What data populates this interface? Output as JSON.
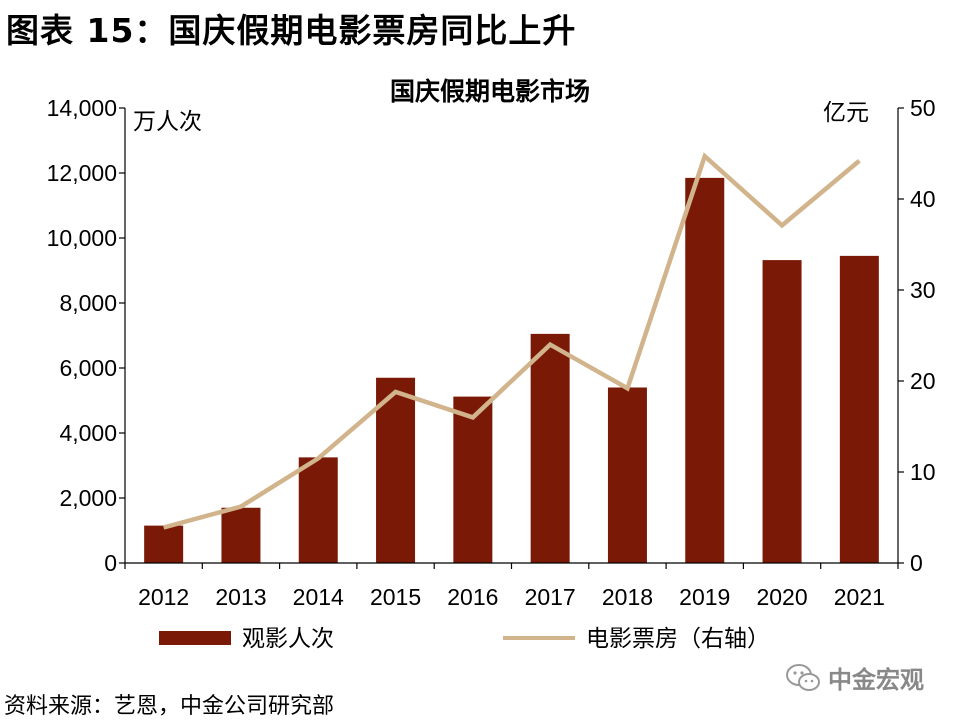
{
  "figure": {
    "label": "图表 15：国庆假期电影票房同比上升",
    "source": "资料来源：艺恩，中金公司研究部",
    "watermark": "中金宏观"
  },
  "chart_data": {
    "type": "bar",
    "title": "国庆假期电影市场",
    "categories": [
      "2012",
      "2013",
      "2014",
      "2015",
      "2016",
      "2017",
      "2018",
      "2019",
      "2020",
      "2021"
    ],
    "y_left": {
      "label": "万人次",
      "min": 0,
      "max": 14000,
      "ticks": [
        "0",
        "2,000",
        "4,000",
        "6,000",
        "8,000",
        "10,000",
        "12,000",
        "14,000"
      ]
    },
    "y_right": {
      "label": "亿元",
      "min": 0,
      "max": 50,
      "ticks": [
        "0",
        "10",
        "20",
        "30",
        "40",
        "50"
      ]
    },
    "series": [
      {
        "name": "观影人次",
        "kind": "bar",
        "axis": "left",
        "color": "#7a1a06",
        "values": [
          1150,
          1700,
          3250,
          5700,
          5120,
          7050,
          5400,
          11850,
          9320,
          9450
        ]
      },
      {
        "name": "电影票房（右轴）",
        "kind": "line",
        "axis": "right",
        "color": "#d2b48c",
        "values": [
          3.9,
          6.2,
          11.5,
          18.8,
          16.0,
          24.0,
          19.2,
          44.7,
          37.1,
          44.2
        ]
      }
    ],
    "grid": false,
    "legend": "bottom"
  }
}
